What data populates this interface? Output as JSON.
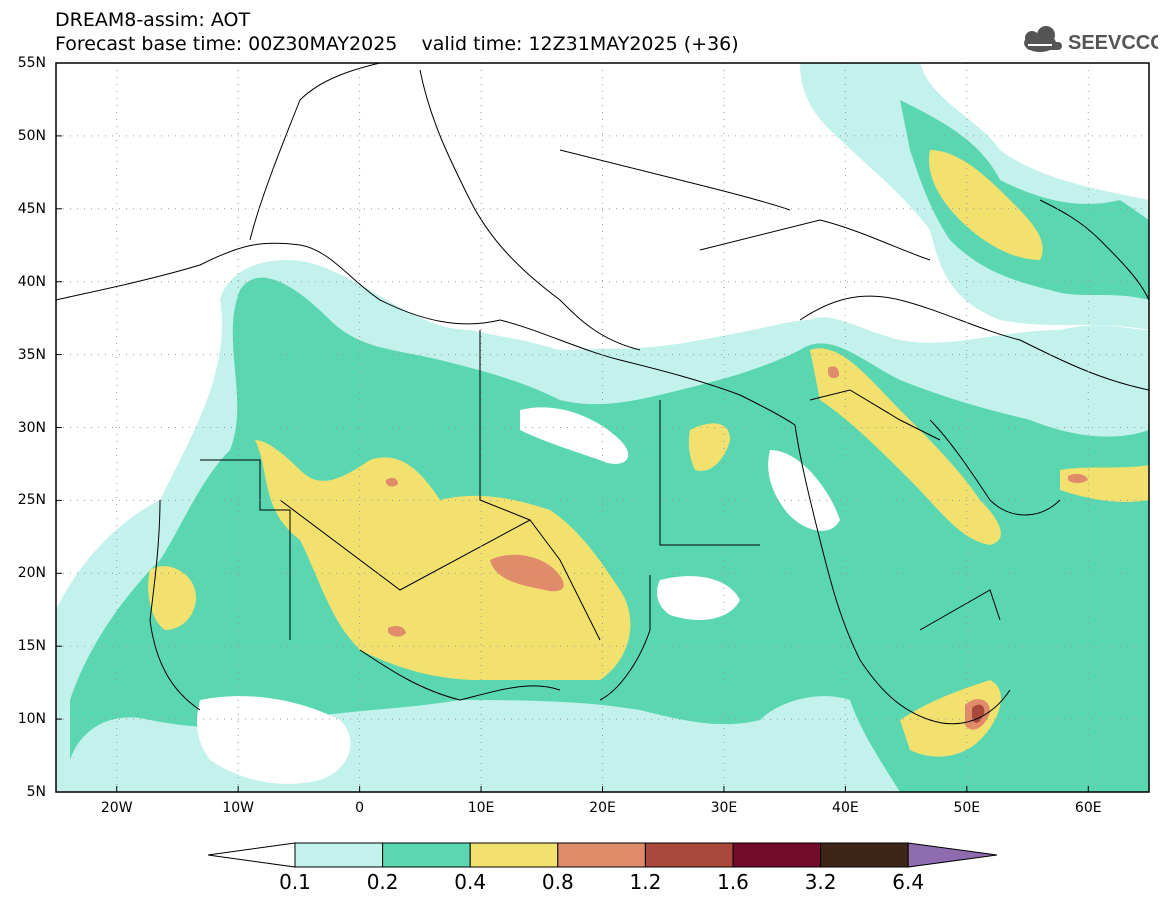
{
  "header": {
    "line1": "DREAM8-assim: AOT",
    "line2": "Forecast base time: 00Z30MAY2025    valid time: 12Z31MAY2025 (+36)",
    "logo_text": "SEEVCCC"
  },
  "map": {
    "projection": "lat-lon",
    "lon_range": [
      -25,
      65
    ],
    "lat_range": [
      5,
      55
    ],
    "y_ticks": [
      "55N",
      "50N",
      "45N",
      "40N",
      "35N",
      "30N",
      "25N",
      "20N",
      "15N",
      "10N",
      "5N"
    ],
    "x_ticks": [
      "20W",
      "10W",
      "0",
      "10E",
      "20E",
      "30E",
      "40E",
      "50E",
      "60E"
    ],
    "gridlines": "dotted",
    "field": "Aerosol Optical Thickness"
  },
  "colorbar": {
    "labels": [
      "0.1",
      "0.2",
      "0.4",
      "0.8",
      "1.2",
      "1.6",
      "3.2",
      "6.4"
    ],
    "colors": [
      "#c3f1eb",
      "#5ad7b0",
      "#f2e16f",
      "#e08b6a",
      "#a8493c",
      "#730b2a",
      "#3d2617",
      "#8f6bb0"
    ]
  }
}
